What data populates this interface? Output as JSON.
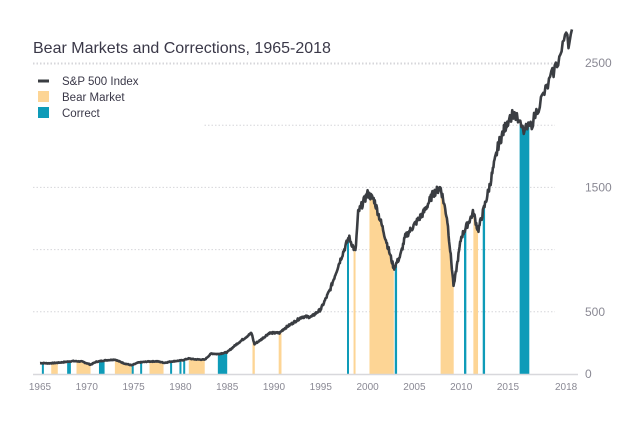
{
  "chart_data": {
    "type": "line",
    "title": "Bear Markets and Corrections, 1965-2018",
    "xlabel": "",
    "ylabel": "",
    "xlim": [
      1965,
      2018
    ],
    "ylim": [
      0,
      2600
    ],
    "grid": true,
    "legend_position": "top-left",
    "legend": [
      {
        "label": "S&P 500 Index",
        "kind": "line",
        "color": "#3a3d42"
      },
      {
        "label": "Bear Market",
        "kind": "band",
        "color": "#fdd595"
      },
      {
        "label": "Correct",
        "kind": "band",
        "color": "#0e9bb8"
      }
    ],
    "x_ticks": [
      "1965",
      "1970",
      "1975",
      "1980",
      "1985",
      "1990",
      "1995",
      "2000",
      "2005",
      "2010",
      "2015",
      "2018"
    ],
    "x_tick_values": [
      1965,
      1970,
      1975,
      1980,
      1985,
      1990,
      1995,
      2000,
      2005,
      2010,
      2015,
      2018
    ],
    "y_ticks": [
      "0",
      "500",
      "1500",
      "2500"
    ],
    "y_tick_values": [
      0,
      500,
      1500,
      2500
    ],
    "y_gridlines": [
      500,
      1000,
      1500,
      2000,
      2500
    ],
    "series": [
      {
        "name": "S&P 500 Index",
        "x": [
          1965,
          1966,
          1966.8,
          1967.5,
          1968.5,
          1969.5,
          1970.4,
          1971,
          1972,
          1973,
          1974,
          1974.8,
          1975.5,
          1976.5,
          1977.5,
          1978.3,
          1979,
          1980.2,
          1980.9,
          1981.5,
          1982.6,
          1983.3,
          1984,
          1985,
          1986,
          1987.6,
          1987.9,
          1988.5,
          1989.5,
          1990.6,
          1991,
          1992,
          1993,
          1994,
          1995,
          1996,
          1997,
          1998,
          1998.7,
          1999,
          2000,
          2000.7,
          2001.7,
          2002.8,
          2003.5,
          2004,
          2005,
          2006,
          2007,
          2007.8,
          2008.5,
          2009.2,
          2010,
          2011.3,
          2011.8,
          2012.5,
          2013,
          2014,
          2015.3,
          2015.8,
          2016.2,
          2016.7,
          2017,
          2017.8,
          2018.0,
          2018.15,
          2018.3
        ],
        "values": [
          88,
          86,
          90,
          95,
          104,
          100,
          75,
          98,
          110,
          116,
          85,
          70,
          92,
          100,
          102,
          90,
          100,
          110,
          125,
          118,
          115,
          165,
          160,
          175,
          240,
          330,
          240,
          270,
          330,
          330,
          360,
          410,
          460,
          460,
          520,
          680,
          900,
          1100,
          980,
          1300,
          1450,
          1400,
          1150,
          850,
          950,
          1100,
          1200,
          1300,
          1450,
          1500,
          1250,
          700,
          1100,
          1300,
          1150,
          1350,
          1500,
          1850,
          2100,
          1950,
          2000,
          2200,
          2300,
          2600,
          2800,
          2650,
          2720
        ]
      }
    ],
    "bear_markets": [
      {
        "start": 1966.2,
        "end": 1966.9
      },
      {
        "start": 1968.9,
        "end": 1970.4
      },
      {
        "start": 1973.0,
        "end": 1974.8
      },
      {
        "start": 1976.7,
        "end": 1978.2
      },
      {
        "start": 1980.9,
        "end": 1982.6
      },
      {
        "start": 1987.7,
        "end": 1987.95
      },
      {
        "start": 1990.5,
        "end": 1990.8
      },
      {
        "start": 1998.5,
        "end": 1998.7
      },
      {
        "start": 2000.2,
        "end": 2002.8
      },
      {
        "start": 2007.8,
        "end": 2009.2
      },
      {
        "start": 2011.3,
        "end": 2011.8
      }
    ],
    "corrections": [
      {
        "start": 1965.2,
        "end": 1965.4
      },
      {
        "start": 1967.9,
        "end": 1968.3
      },
      {
        "start": 1971.3,
        "end": 1971.9
      },
      {
        "start": 1974.8,
        "end": 1975.0
      },
      {
        "start": 1975.7,
        "end": 1975.9
      },
      {
        "start": 1978.9,
        "end": 1979.1
      },
      {
        "start": 1979.9,
        "end": 1980.1
      },
      {
        "start": 1980.3,
        "end": 1980.5
      },
      {
        "start": 1984.0,
        "end": 1985.0
      },
      {
        "start": 1997.8,
        "end": 1998.0
      },
      {
        "start": 2002.9,
        "end": 2003.15
      },
      {
        "start": 2010.3,
        "end": 2010.55
      },
      {
        "start": 2012.3,
        "end": 2012.55
      },
      {
        "start": 2015.6,
        "end": 2016.1
      }
    ]
  }
}
